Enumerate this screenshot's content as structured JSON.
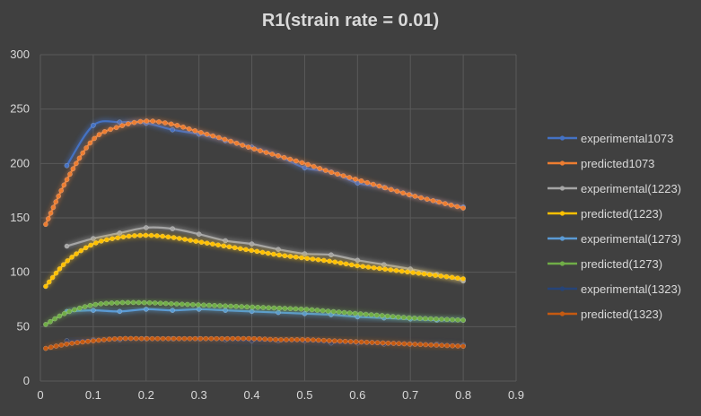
{
  "chart_data": {
    "type": "line",
    "title": "R1(strain rate =  0.01)",
    "xlabel": "",
    "ylabel": "",
    "xlim": [
      0,
      0.9
    ],
    "ylim": [
      0,
      300
    ],
    "xticks": [
      "0",
      "0.1",
      "0.2",
      "0.3",
      "0.4",
      "0.5",
      "0.6",
      "0.7",
      "0.8",
      "0.9"
    ],
    "yticks": [
      "0",
      "50",
      "100",
      "150",
      "200",
      "250",
      "300"
    ],
    "grid": true,
    "legend_position": "right",
    "series": [
      {
        "name": "experimental1073",
        "color": "#4472c4",
        "x": [
          0.05,
          0.1,
          0.15,
          0.2,
          0.25,
          0.3,
          0.35,
          0.4,
          0.45,
          0.5,
          0.55,
          0.6,
          0.65,
          0.7,
          0.75,
          0.8
        ],
        "y": [
          198,
          235,
          238,
          237,
          231,
          227,
          221,
          215,
          207,
          196,
          192,
          182,
          178,
          171,
          165,
          160
        ]
      },
      {
        "name": "predicted1073",
        "color": "#ed7d31",
        "x": [
          0.01,
          0.05,
          0.1,
          0.15,
          0.2,
          0.25,
          0.3,
          0.35,
          0.4,
          0.45,
          0.5,
          0.55,
          0.6,
          0.65,
          0.7,
          0.75,
          0.8
        ],
        "y": [
          144,
          185,
          222,
          234,
          239,
          236,
          229,
          222,
          214,
          207,
          200,
          192,
          185,
          178,
          171,
          165,
          159
        ]
      },
      {
        "name": "experimental(1223)",
        "color": "#a5a5a5",
        "x": [
          0.05,
          0.1,
          0.15,
          0.2,
          0.25,
          0.3,
          0.35,
          0.4,
          0.45,
          0.5,
          0.55,
          0.6,
          0.65,
          0.7,
          0.75,
          0.8
        ],
        "y": [
          124,
          131,
          136,
          141,
          140,
          135,
          129,
          126,
          121,
          117,
          116,
          111,
          107,
          103,
          98,
          92
        ]
      },
      {
        "name": "predicted(1223)",
        "color": "#ffc000",
        "x": [
          0.01,
          0.05,
          0.1,
          0.15,
          0.2,
          0.25,
          0.3,
          0.35,
          0.4,
          0.45,
          0.5,
          0.55,
          0.6,
          0.65,
          0.7,
          0.75,
          0.8
        ],
        "y": [
          87,
          110,
          126,
          132,
          134,
          132,
          128,
          124,
          120,
          116,
          113,
          110,
          106,
          103,
          100,
          97,
          94
        ]
      },
      {
        "name": "experimental(1273)",
        "color": "#5b9bd5",
        "x": [
          0.05,
          0.1,
          0.15,
          0.2,
          0.25,
          0.3,
          0.35,
          0.4,
          0.45,
          0.5,
          0.55,
          0.6,
          0.65,
          0.7,
          0.75,
          0.8
        ],
        "y": [
          64,
          65,
          64,
          66,
          65,
          66,
          65,
          64,
          63,
          62,
          61,
          59,
          58,
          57,
          56,
          56
        ]
      },
      {
        "name": "predicted(1273)",
        "color": "#70ad47",
        "x": [
          0.01,
          0.05,
          0.1,
          0.15,
          0.2,
          0.25,
          0.3,
          0.35,
          0.4,
          0.45,
          0.5,
          0.55,
          0.6,
          0.65,
          0.7,
          0.75,
          0.8
        ],
        "y": [
          52,
          63,
          70,
          72,
          72,
          71,
          70,
          69,
          68,
          67,
          66,
          64,
          62,
          60,
          58,
          57,
          56
        ]
      },
      {
        "name": "experimental(1323)",
        "color": "#264478",
        "x": [
          0.05,
          0.1,
          0.15,
          0.2,
          0.25,
          0.3,
          0.35,
          0.4,
          0.45,
          0.5,
          0.55,
          0.6,
          0.65,
          0.7,
          0.75,
          0.8
        ],
        "y": [
          37,
          38,
          38,
          39,
          39,
          39,
          38,
          37,
          37,
          37,
          35,
          35,
          34,
          34,
          34,
          33
        ]
      },
      {
        "name": "predicted(1323)",
        "color": "#c55a11",
        "x": [
          0.01,
          0.05,
          0.1,
          0.15,
          0.2,
          0.25,
          0.3,
          0.35,
          0.4,
          0.45,
          0.5,
          0.55,
          0.6,
          0.65,
          0.7,
          0.75,
          0.8
        ],
        "y": [
          30,
          34,
          37,
          39,
          39,
          39,
          39,
          39,
          39,
          38,
          38,
          37,
          36,
          35,
          34,
          33,
          32
        ]
      }
    ]
  }
}
